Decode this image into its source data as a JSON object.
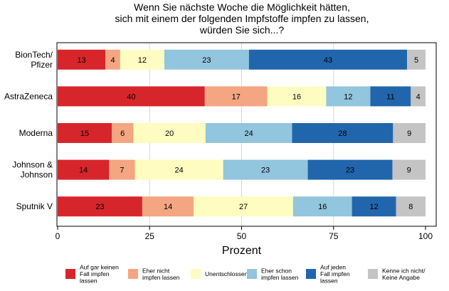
{
  "chart_data": {
    "type": "bar",
    "orientation": "horizontal",
    "stacked": true,
    "title": [
      "Wenn Sie nächste Woche die Möglichkeit hätten,",
      "sich mit einem der folgenden Impfstoffe impfen zu lassen,",
      "würden Sie sich...?"
    ],
    "xlabel": "Prozent",
    "xlim": [
      0,
      100
    ],
    "xticks": [
      0,
      25,
      50,
      75,
      100
    ],
    "grid": true,
    "legend_position": "bottom",
    "categories": [
      [
        "BionTech/",
        "Pfizer"
      ],
      [
        "AstraZeneca"
      ],
      [
        "Moderna"
      ],
      [
        "Johnson &",
        "Johnson"
      ],
      [
        "Sputnik V"
      ]
    ],
    "series": [
      {
        "name": [
          "Auf gar keinen",
          "Fall impfen",
          "lassen"
        ],
        "color": "#d7262b",
        "values": [
          13,
          40,
          15,
          14,
          23
        ]
      },
      {
        "name": [
          "Eher nicht",
          "impfen lassen"
        ],
        "color": "#f4a582",
        "values": [
          4,
          17,
          6,
          7,
          14
        ]
      },
      {
        "name": [
          "Unentschlossen"
        ],
        "color": "#fefcc0",
        "values": [
          12,
          16,
          20,
          24,
          27
        ]
      },
      {
        "name": [
          "Eher schon",
          "impfen lassen"
        ],
        "color": "#92c5de",
        "values": [
          23,
          12,
          24,
          23,
          16
        ]
      },
      {
        "name": [
          "Auf jeden",
          "Fall impfen",
          "lassen"
        ],
        "color": "#2166ac",
        "values": [
          43,
          11,
          28,
          23,
          12
        ]
      },
      {
        "name": [
          "Kenne ich nicht/",
          "Keine Angabe"
        ],
        "color": "#c4c4c4",
        "values": [
          5,
          4,
          9,
          9,
          8
        ]
      }
    ]
  }
}
